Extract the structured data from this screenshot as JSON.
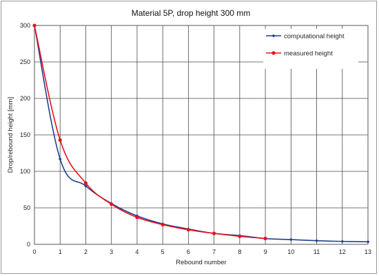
{
  "chart_data": {
    "type": "line",
    "title": "Material 5P, drop height 300 mm",
    "xlabel": "Rebound number",
    "ylabel": "Drop/rebound height [mm]",
    "xlim": [
      0,
      13
    ],
    "ylim": [
      0,
      300
    ],
    "x_ticks": [
      0,
      1,
      2,
      3,
      4,
      5,
      6,
      7,
      8,
      9,
      10,
      11,
      12,
      13
    ],
    "y_ticks": [
      0,
      50,
      100,
      150,
      200,
      250,
      300
    ],
    "grid": true,
    "legend_position": "top-right",
    "series": [
      {
        "name": "computational height",
        "color": "#1f3f8f",
        "x": [
          0,
          1,
          2,
          3,
          4,
          5,
          6,
          7,
          8,
          9,
          10,
          11,
          12,
          13
        ],
        "values": [
          300,
          117,
          80,
          56,
          39,
          28,
          21,
          15,
          12,
          8,
          6.5,
          5,
          4,
          3.5
        ]
      },
      {
        "name": "measured height",
        "color": "#e8101e",
        "x": [
          0,
          1,
          2,
          3,
          4,
          5,
          6,
          7,
          8,
          9
        ],
        "values": [
          300,
          143,
          84,
          55,
          37,
          27,
          20,
          15,
          11,
          8
        ]
      }
    ]
  }
}
